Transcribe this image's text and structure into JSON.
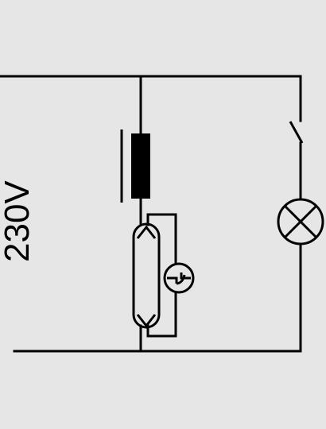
{
  "diagram": {
    "voltage_label": "230V",
    "colors": {
      "background": "#e6e6e6",
      "line": "#000000"
    },
    "components": [
      "choke-inductor",
      "fluorescent-tube",
      "glow-starter",
      "switch",
      "lamp"
    ]
  }
}
